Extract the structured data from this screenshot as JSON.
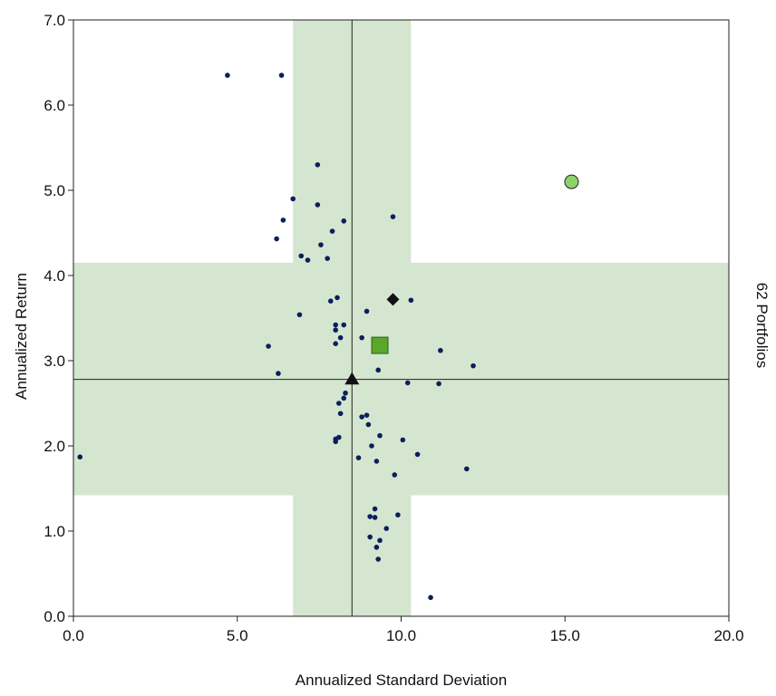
{
  "chart_data": {
    "type": "scatter",
    "xlabel": "Annualized Standard Deviation",
    "ylabel": "Annualized Return",
    "right_label": "62 Portfolios",
    "xlim": [
      0,
      20
    ],
    "ylim": [
      0,
      7
    ],
    "x_ticks": [
      "0.0",
      "5.0",
      "10.0",
      "15.0",
      "20.0"
    ],
    "y_ticks": [
      "0.0",
      "1.0",
      "2.0",
      "3.0",
      "4.0",
      "5.0",
      "6.0",
      "7.0"
    ],
    "grid": false,
    "colors": {
      "band": "#d4e6cf",
      "points": "#0b1f5c",
      "square": "#5aa82a",
      "circle": "#8fd16b",
      "lines": "#222222"
    },
    "reference_lines": {
      "x": 8.5,
      "y": 2.78
    },
    "bands": {
      "vertical": [
        6.7,
        10.3
      ],
      "horizontal": [
        1.42,
        4.15
      ]
    },
    "points": [
      {
        "x": 0.2,
        "y": 1.87
      },
      {
        "x": 4.7,
        "y": 6.35
      },
      {
        "x": 6.35,
        "y": 6.35
      },
      {
        "x": 7.45,
        "y": 5.3
      },
      {
        "x": 6.7,
        "y": 4.9
      },
      {
        "x": 7.45,
        "y": 4.83
      },
      {
        "x": 6.4,
        "y": 4.65
      },
      {
        "x": 8.25,
        "y": 4.64
      },
      {
        "x": 9.75,
        "y": 4.69
      },
      {
        "x": 7.9,
        "y": 4.52
      },
      {
        "x": 6.2,
        "y": 4.43
      },
      {
        "x": 7.55,
        "y": 4.36
      },
      {
        "x": 6.95,
        "y": 4.23
      },
      {
        "x": 7.15,
        "y": 4.18
      },
      {
        "x": 7.75,
        "y": 4.2
      },
      {
        "x": 8.05,
        "y": 3.74
      },
      {
        "x": 7.85,
        "y": 3.7
      },
      {
        "x": 10.3,
        "y": 3.71
      },
      {
        "x": 6.9,
        "y": 3.54
      },
      {
        "x": 8.95,
        "y": 3.58
      },
      {
        "x": 8.0,
        "y": 3.42
      },
      {
        "x": 8.25,
        "y": 3.42
      },
      {
        "x": 8.0,
        "y": 3.36
      },
      {
        "x": 8.15,
        "y": 3.27
      },
      {
        "x": 8.8,
        "y": 3.27
      },
      {
        "x": 5.95,
        "y": 3.17
      },
      {
        "x": 8.0,
        "y": 3.2
      },
      {
        "x": 11.2,
        "y": 3.12
      },
      {
        "x": 12.2,
        "y": 2.94
      },
      {
        "x": 9.3,
        "y": 2.89
      },
      {
        "x": 6.25,
        "y": 2.85
      },
      {
        "x": 10.2,
        "y": 2.74
      },
      {
        "x": 11.15,
        "y": 2.73
      },
      {
        "x": 8.3,
        "y": 2.62
      },
      {
        "x": 8.25,
        "y": 2.56
      },
      {
        "x": 8.1,
        "y": 2.5
      },
      {
        "x": 8.15,
        "y": 2.38
      },
      {
        "x": 8.8,
        "y": 2.34
      },
      {
        "x": 8.95,
        "y": 2.36
      },
      {
        "x": 9.0,
        "y": 2.25
      },
      {
        "x": 9.35,
        "y": 2.12
      },
      {
        "x": 8.1,
        "y": 2.1
      },
      {
        "x": 8.0,
        "y": 2.08
      },
      {
        "x": 8.0,
        "y": 2.05
      },
      {
        "x": 10.05,
        "y": 2.07
      },
      {
        "x": 9.1,
        "y": 2.0
      },
      {
        "x": 10.5,
        "y": 1.9
      },
      {
        "x": 8.7,
        "y": 1.86
      },
      {
        "x": 9.25,
        "y": 1.82
      },
      {
        "x": 12.0,
        "y": 1.73
      },
      {
        "x": 9.8,
        "y": 1.66
      },
      {
        "x": 9.2,
        "y": 1.26
      },
      {
        "x": 9.9,
        "y": 1.19
      },
      {
        "x": 9.05,
        "y": 1.17
      },
      {
        "x": 9.2,
        "y": 1.16
      },
      {
        "x": 9.55,
        "y": 1.03
      },
      {
        "x": 9.05,
        "y": 0.93
      },
      {
        "x": 9.35,
        "y": 0.89
      },
      {
        "x": 9.25,
        "y": 0.81
      },
      {
        "x": 9.3,
        "y": 0.67
      },
      {
        "x": 10.9,
        "y": 0.22
      }
    ],
    "markers": [
      {
        "shape": "triangle",
        "x": 8.5,
        "y": 2.78,
        "color": "#111111"
      },
      {
        "shape": "square",
        "x": 9.35,
        "y": 3.18,
        "color": "#5aa82a"
      },
      {
        "shape": "diamond",
        "x": 9.75,
        "y": 3.72,
        "color": "#111111"
      },
      {
        "shape": "circle",
        "x": 15.2,
        "y": 5.1,
        "color": "#8fd16b"
      }
    ]
  }
}
